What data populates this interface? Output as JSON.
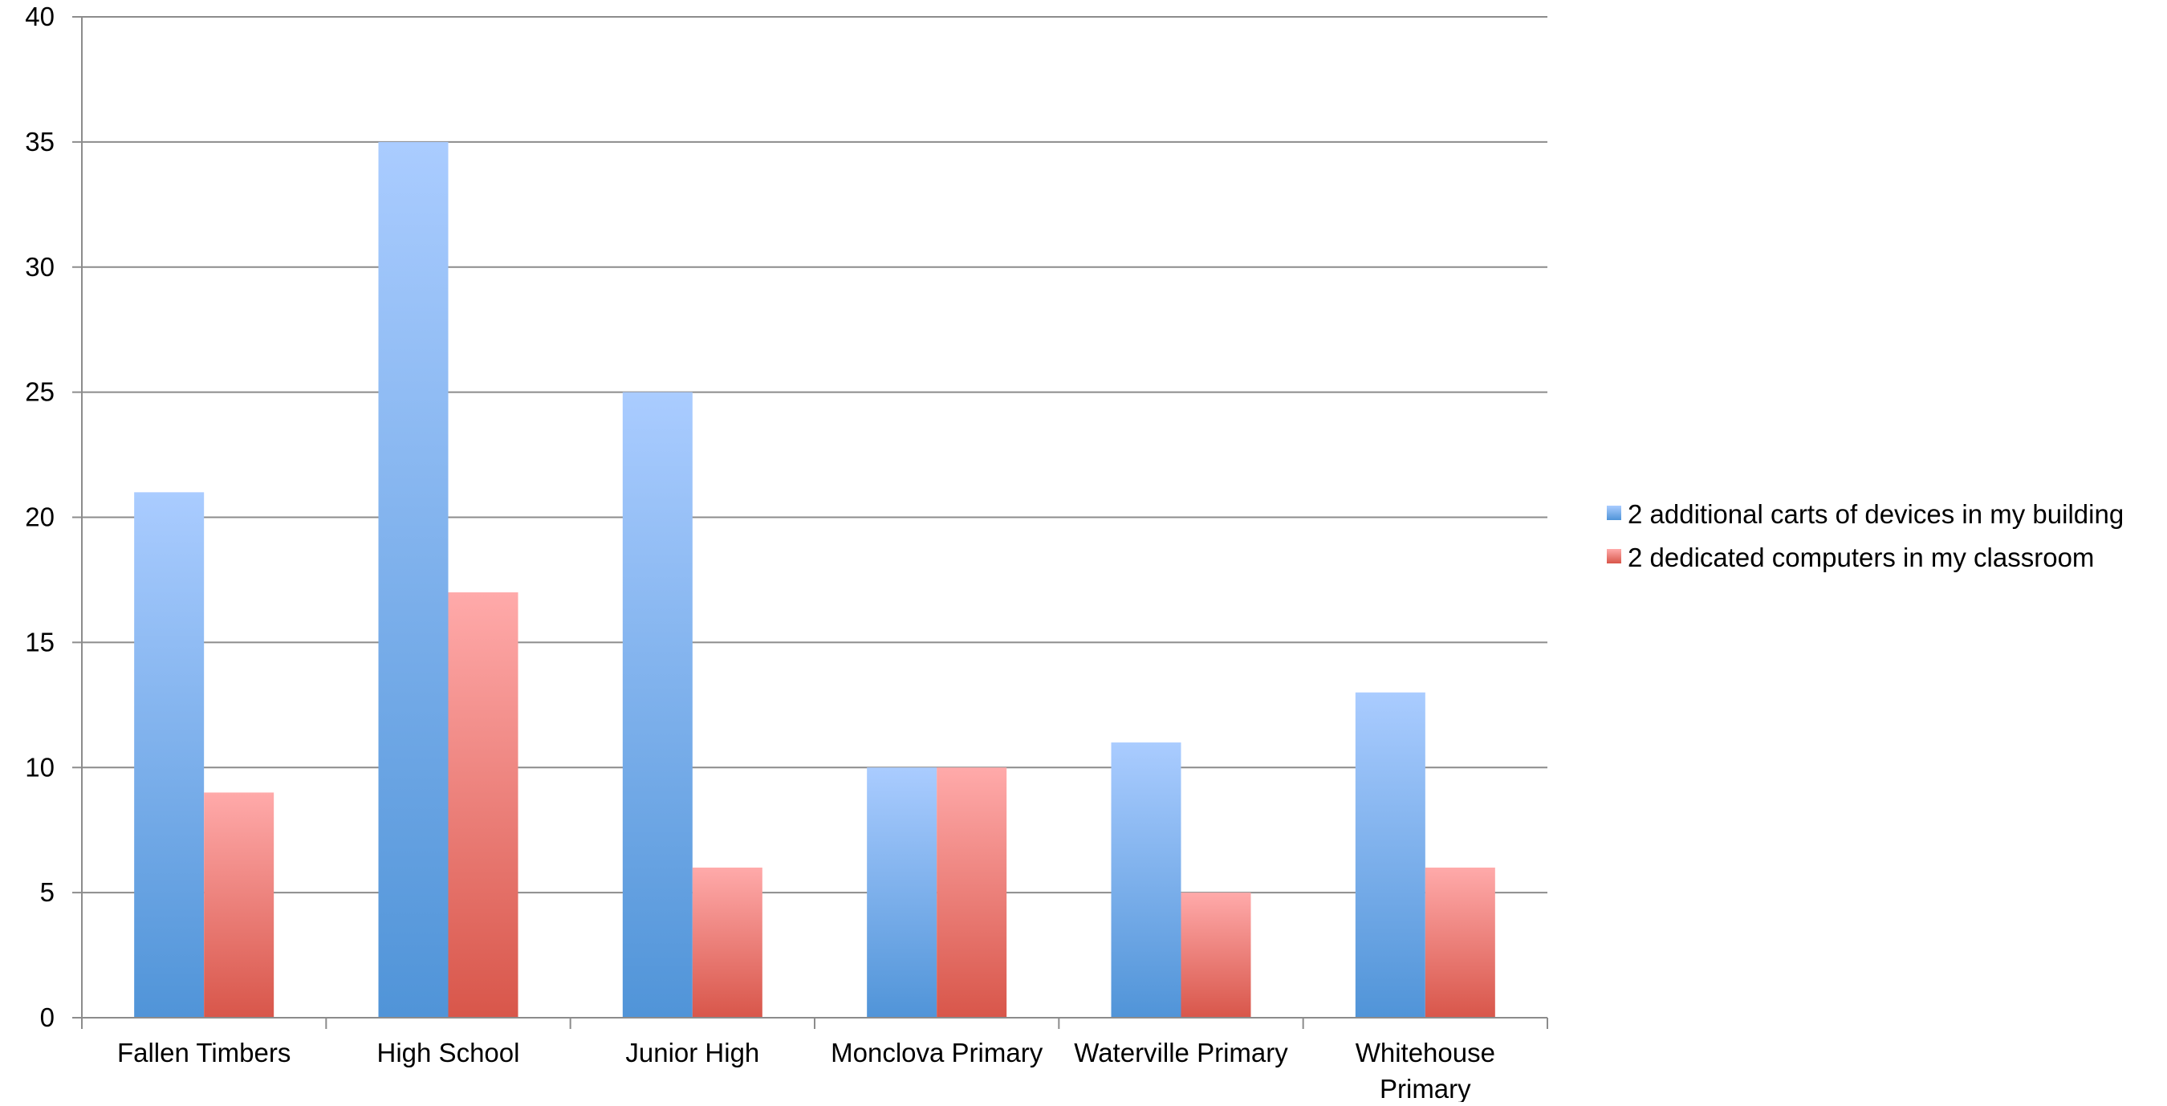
{
  "chart_data": {
    "type": "bar",
    "title": "",
    "xlabel": "",
    "ylabel": "",
    "categories": [
      [
        "Fallen Timbers"
      ],
      [
        "High School"
      ],
      [
        "Junior High"
      ],
      [
        "Monclova Primary"
      ],
      [
        "Waterville Primary"
      ],
      [
        "Whitehouse",
        "Primary"
      ]
    ],
    "series": [
      {
        "name": "2 additional carts of devices in my building",
        "values": [
          21,
          35,
          25,
          10,
          11,
          13
        ],
        "color_top": "#aaccff",
        "color_bottom": "#5094d8"
      },
      {
        "name": "2 dedicated computers in my classroom",
        "values": [
          9,
          17,
          6,
          10,
          5,
          6
        ],
        "color_top": "#ffaaaa",
        "color_bottom": "#d8564a"
      }
    ],
    "ylim": [
      0,
      40
    ],
    "yticks": [
      0,
      5,
      10,
      15,
      20,
      25,
      30,
      35,
      40
    ],
    "grid": true,
    "legend_position": "right"
  }
}
